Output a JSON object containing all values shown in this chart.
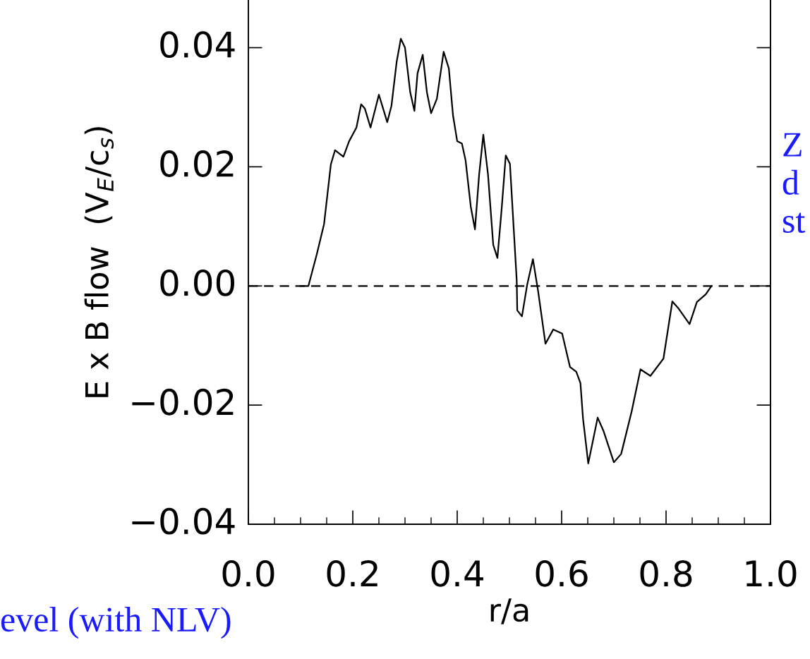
{
  "chart_data": {
    "type": "line",
    "xlabel": "r/a",
    "ylabel": "E x B flow  (V$_{E}$/c$_{s}$)",
    "xlim": [
      0.0,
      1.0
    ],
    "xticks": [
      {
        "value": 0.0,
        "label": "0.0"
      },
      0.2,
      0.4,
      0.6,
      0.8,
      {
        "value": 1.0,
        "label": "1.0"
      }
    ],
    "ylim": [
      -0.04,
      0.048
    ],
    "yticks": [
      {
        "value": -0.04,
        "label": "−0.04"
      },
      {
        "value": -0.02,
        "label": "−0.02"
      },
      {
        "value": 0.0,
        "label": "0.00"
      },
      {
        "value": 0.02,
        "label": "0.02"
      },
      {
        "value": 0.04,
        "label": "0.04"
      }
    ],
    "grid": false,
    "legend": false,
    "marker": "none",
    "line_style": "solid",
    "ref_lines": [
      {
        "axis": "y",
        "value": 0,
        "line_style": "dashed",
        "color": "#000000"
      }
    ],
    "annotations": [
      "Z\nd\nst",
      "evel (with NLV)"
    ],
    "series": [
      {
        "color": "#000000",
        "x": [
          0.1,
          0.115,
          0.131,
          0.145,
          0.158,
          0.166,
          0.182,
          0.193,
          0.207,
          0.216,
          0.223,
          0.234,
          0.25,
          0.266,
          0.274,
          0.284,
          0.292,
          0.3,
          0.31,
          0.318,
          0.324,
          0.334,
          0.342,
          0.35,
          0.361,
          0.374,
          0.384,
          0.392,
          0.4,
          0.409,
          0.416,
          0.426,
          0.434,
          0.442,
          0.45,
          0.459,
          0.469,
          0.477,
          0.485,
          0.493,
          0.501,
          0.514,
          0.515,
          0.524,
          0.534,
          0.545,
          0.555,
          0.569,
          0.584,
          0.601,
          0.616,
          0.628,
          0.636,
          0.641,
          0.651,
          0.669,
          0.68,
          0.7,
          0.714,
          0.734,
          0.751,
          0.77,
          0.795,
          0.812,
          0.824,
          0.845,
          0.859,
          0.876,
          0.887
        ],
        "values": [
          0.0,
          0.0,
          0.0053,
          0.0104,
          0.0204,
          0.0228,
          0.0217,
          0.0243,
          0.0266,
          0.0305,
          0.0298,
          0.0266,
          0.0321,
          0.0275,
          0.0302,
          0.0376,
          0.0415,
          0.04,
          0.0325,
          0.0294,
          0.0357,
          0.0388,
          0.0325,
          0.029,
          0.0314,
          0.0393,
          0.0365,
          0.0286,
          0.0243,
          0.0239,
          0.0211,
          0.0133,
          0.0095,
          0.0187,
          0.0254,
          0.0187,
          0.0069,
          0.0047,
          0.0128,
          0.0219,
          0.0205,
          0.0009,
          -0.0041,
          -0.0051,
          0.0002,
          0.0045,
          -0.0009,
          -0.0097,
          -0.0073,
          -0.008,
          -0.0136,
          -0.0144,
          -0.0163,
          -0.0223,
          -0.0298,
          -0.0221,
          -0.0243,
          -0.0296,
          -0.0282,
          -0.0211,
          -0.014,
          -0.0151,
          -0.0122,
          -0.0026,
          -0.0038,
          -0.0064,
          -0.0027,
          -0.0014,
          0.0
        ]
      }
    ]
  }
}
